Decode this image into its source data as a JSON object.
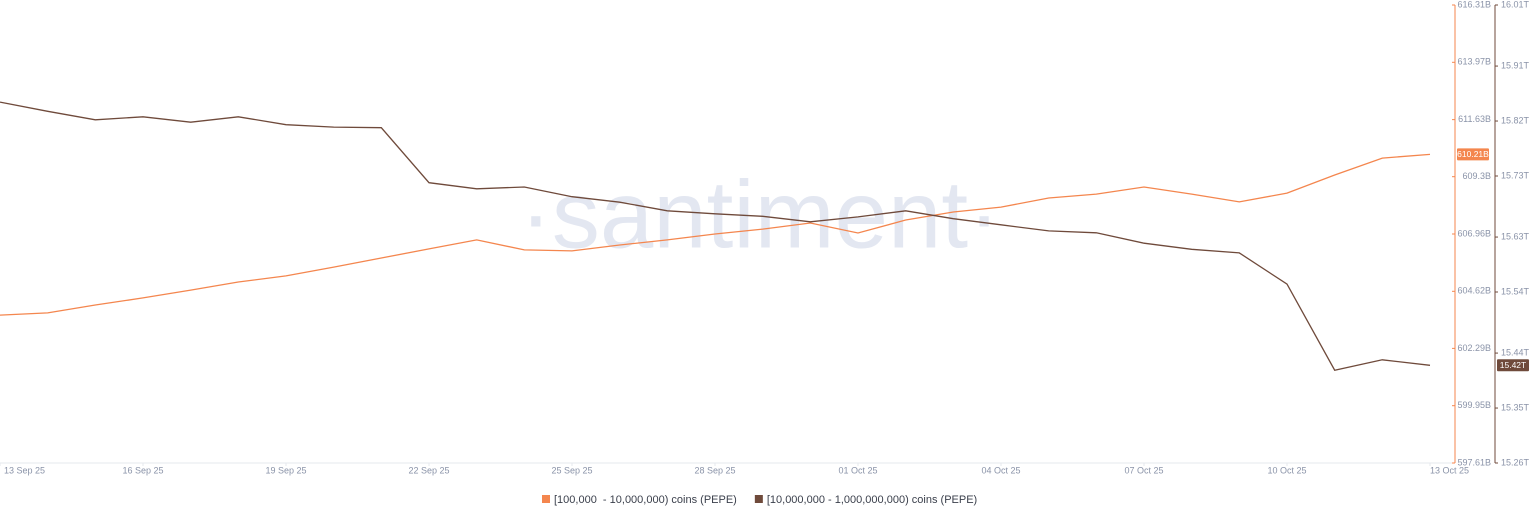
{
  "chart_data": {
    "type": "line",
    "watermark": "·santiment·",
    "x": [
      "2025-09-13",
      "2025-09-14",
      "2025-09-15",
      "2025-09-16",
      "2025-09-17",
      "2025-09-18",
      "2025-09-19",
      "2025-09-20",
      "2025-09-21",
      "2025-09-22",
      "2025-09-23",
      "2025-09-24",
      "2025-09-25",
      "2025-09-26",
      "2025-09-27",
      "2025-09-28",
      "2025-09-29",
      "2025-09-30",
      "2025-10-01",
      "2025-10-02",
      "2025-10-03",
      "2025-10-04",
      "2025-10-05",
      "2025-10-06",
      "2025-10-07",
      "2025-10-08",
      "2025-10-09",
      "2025-10-10",
      "2025-10-11",
      "2025-10-12",
      "2025-10-13"
    ],
    "xticks": [
      {
        "value": "2025-09-13",
        "label": "13 Sep 25"
      },
      {
        "value": "2025-09-16",
        "label": "16 Sep 25"
      },
      {
        "value": "2025-09-19",
        "label": "19 Sep 25"
      },
      {
        "value": "2025-09-22",
        "label": "22 Sep 25"
      },
      {
        "value": "2025-09-25",
        "label": "25 Sep 25"
      },
      {
        "value": "2025-09-28",
        "label": "28 Sep 25"
      },
      {
        "value": "2025-10-01",
        "label": "01 Oct 25"
      },
      {
        "value": "2025-10-04",
        "label": "04 Oct 25"
      },
      {
        "value": "2025-10-07",
        "label": "07 Oct 25"
      },
      {
        "value": "2025-10-10",
        "label": "10 Oct 25"
      },
      {
        "value": "2025-10-13",
        "label": "13 Oct 25"
      }
    ],
    "ylim": [
      597.61,
      616.31
    ],
    "yticks": [
      {
        "value": 597.61,
        "label": "597.61B"
      },
      {
        "value": 599.95,
        "label": "599.95B"
      },
      {
        "value": 602.29,
        "label": "602.29B"
      },
      {
        "value": 604.62,
        "label": "604.62B"
      },
      {
        "value": 606.96,
        "label": "606.96B"
      },
      {
        "value": 609.3,
        "label": "609.3B"
      },
      {
        "value": 611.63,
        "label": "611.63B"
      },
      {
        "value": 613.97,
        "label": "613.97B"
      },
      {
        "value": 616.31,
        "label": "616.31B"
      }
    ],
    "y2lim": [
      15.26,
      16.01
    ],
    "y2ticks": [
      {
        "value": 15.26,
        "label": "15.26T"
      },
      {
        "value": 15.35,
        "label": "15.35T"
      },
      {
        "value": 15.44,
        "label": "15.44T"
      },
      {
        "value": 15.54,
        "label": "15.54T"
      },
      {
        "value": 15.63,
        "label": "15.63T"
      },
      {
        "value": 15.73,
        "label": "15.73T"
      },
      {
        "value": 15.82,
        "label": "15.82T"
      },
      {
        "value": 15.91,
        "label": "15.91T"
      },
      {
        "value": 16.01,
        "label": "16.01T"
      }
    ],
    "series": [
      {
        "name": "[100,000  - 10,000,000) coins (PEPE)",
        "color": "#f4864e",
        "axis": "y",
        "values": [
          603.65,
          603.74,
          604.06,
          604.35,
          604.67,
          605.0,
          605.25,
          605.61,
          605.98,
          606.35,
          606.72,
          606.31,
          606.27,
          606.51,
          606.72,
          606.96,
          607.16,
          607.41,
          607.0,
          607.53,
          607.86,
          608.06,
          608.43,
          608.59,
          608.88,
          608.59,
          608.27,
          608.63,
          609.37,
          610.06,
          610.21
        ],
        "value_labels": [
          null,
          null,
          null,
          null,
          null,
          null,
          null,
          null,
          null,
          null,
          null,
          null,
          null,
          null,
          null,
          null,
          null,
          null,
          null,
          null,
          null,
          null,
          null,
          null,
          null,
          null,
          null,
          null,
          null,
          null,
          "610.21B"
        ]
      },
      {
        "name": "[10,000,000 - 1,000,000,000) coins (PEPE)",
        "color": "#6f4a3b",
        "axis": "y2",
        "values": [
          15.851,
          15.836,
          15.822,
          15.827,
          15.818,
          15.827,
          15.814,
          15.81,
          15.809,
          15.719,
          15.709,
          15.712,
          15.696,
          15.687,
          15.673,
          15.668,
          15.664,
          15.655,
          15.663,
          15.673,
          15.66,
          15.65,
          15.64,
          15.637,
          15.62,
          15.61,
          15.604,
          15.553,
          15.412,
          15.429,
          15.42
        ],
        "value_labels": [
          null,
          null,
          null,
          null,
          null,
          null,
          null,
          null,
          null,
          null,
          null,
          null,
          null,
          null,
          null,
          null,
          null,
          null,
          null,
          null,
          null,
          null,
          null,
          null,
          null,
          null,
          null,
          null,
          null,
          null,
          "15.42T"
        ]
      }
    ]
  }
}
